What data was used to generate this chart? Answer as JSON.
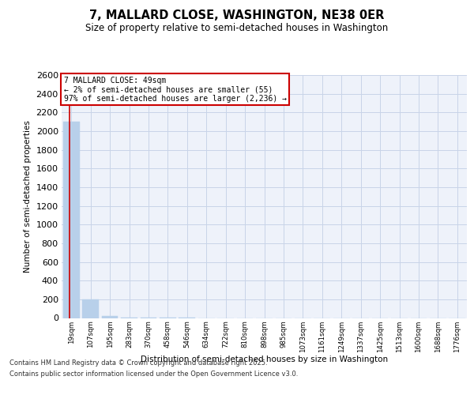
{
  "title": "7, MALLARD CLOSE, WASHINGTON, NE38 0ER",
  "subtitle": "Size of property relative to semi-detached houses in Washington",
  "xlabel": "Distribution of semi-detached houses by size in Washington",
  "ylabel": "Number of semi-detached properties",
  "categories": [
    "19sqm",
    "107sqm",
    "195sqm",
    "283sqm",
    "370sqm",
    "458sqm",
    "546sqm",
    "634sqm",
    "722sqm",
    "810sqm",
    "898sqm",
    "985sqm",
    "1073sqm",
    "1161sqm",
    "1249sqm",
    "1337sqm",
    "1425sqm",
    "1513sqm",
    "1600sqm",
    "1688sqm",
    "1776sqm"
  ],
  "values": [
    2100,
    200,
    25,
    5,
    2,
    1,
    1,
    0,
    0,
    0,
    0,
    0,
    0,
    0,
    0,
    0,
    0,
    0,
    0,
    0,
    0
  ],
  "bar_color": "#b8d0ea",
  "bar_edge_color": "#b8d0ea",
  "ylim": [
    0,
    2600
  ],
  "yticks": [
    0,
    200,
    400,
    600,
    800,
    1000,
    1200,
    1400,
    1600,
    1800,
    2000,
    2200,
    2400,
    2600
  ],
  "annotation_title": "7 MALLARD CLOSE: 49sqm",
  "annotation_line1": "← 2% of semi-detached houses are smaller (55)",
  "annotation_line2": "97% of semi-detached houses are larger (2,236) →",
  "annotation_color": "#cc0000",
  "grid_color": "#c8d4e8",
  "background_color": "#eef2fa",
  "footer_line1": "Contains HM Land Registry data © Crown copyright and database right 2025.",
  "footer_line2": "Contains public sector information licensed under the Open Government Licence v3.0."
}
